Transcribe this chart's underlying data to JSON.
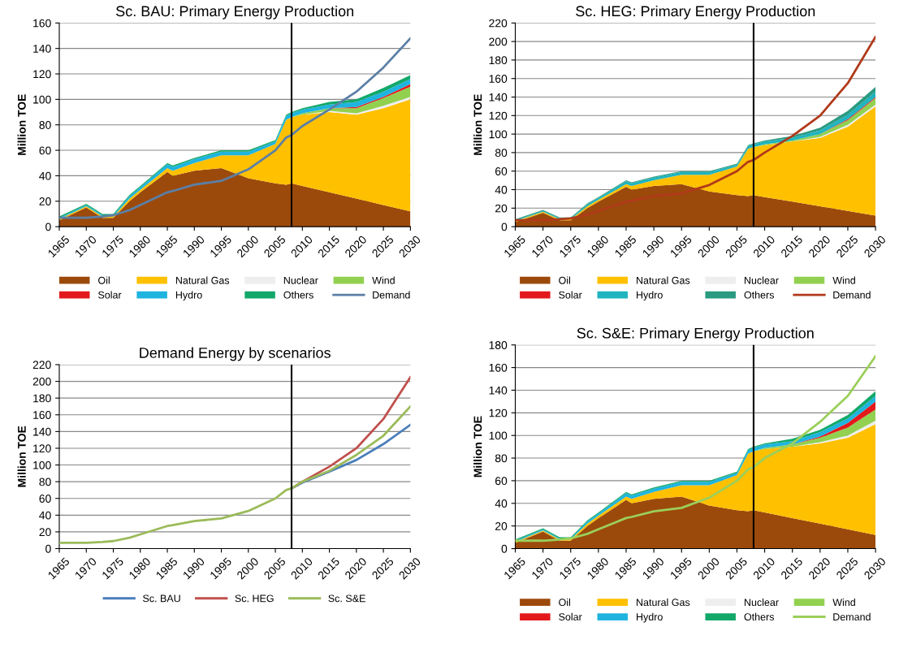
{
  "chart_data": [
    {
      "type": "area",
      "stacked": true,
      "title": "Sc. BAU: Primary Energy Production",
      "ylabel": "Million TOE",
      "x": [
        1965,
        1970,
        1973,
        1975,
        1978,
        1980,
        1985,
        1986,
        1990,
        1995,
        2000,
        2005,
        2007,
        2008,
        2010,
        2015,
        2020,
        2025,
        2030
      ],
      "xlim": [
        1965,
        2030
      ],
      "xticks": [
        1965,
        1970,
        1975,
        1980,
        1985,
        1990,
        1995,
        2000,
        2005,
        2010,
        2015,
        2020,
        2025,
        2030
      ],
      "ylim": [
        0,
        160
      ],
      "yticks": [
        0,
        20,
        40,
        60,
        80,
        100,
        120,
        140,
        160
      ],
      "grid": "y",
      "legend": "bottom",
      "ref_lines": [
        {
          "axis": "x",
          "value": 2008,
          "color": "#000000"
        }
      ],
      "series": [
        {
          "name": "Oil",
          "color": "#9c4a0c",
          "values": [
            5,
            15,
            7,
            7,
            20,
            27,
            43,
            40,
            44,
            46,
            38,
            34,
            33,
            34,
            32,
            27,
            22,
            17,
            12
          ]
        },
        {
          "name": "Natural Gas",
          "color": "#ffc000",
          "values": [
            1,
            1,
            1,
            1,
            2,
            2,
            3,
            4,
            6,
            10,
            18,
            31,
            51,
            52,
            56,
            63,
            66,
            76,
            88
          ]
        },
        {
          "name": "Nuclear",
          "color": "#eeeeee",
          "values": [
            0,
            0,
            0,
            0,
            0,
            0,
            0,
            0,
            0,
            0,
            0,
            0,
            0,
            0,
            0,
            1,
            1,
            2,
            2
          ]
        },
        {
          "name": "Wind",
          "color": "#92d050",
          "values": [
            0,
            0,
            0,
            0,
            0,
            0,
            0,
            0,
            0,
            0,
            0,
            0,
            0,
            0,
            1,
            2,
            4,
            6,
            8
          ]
        },
        {
          "name": "Solar",
          "color": "#e31a1c",
          "values": [
            0,
            0,
            0,
            0,
            0,
            0,
            0,
            0,
            0,
            0,
            0,
            0,
            0,
            0,
            0,
            0,
            1,
            1,
            2
          ]
        },
        {
          "name": "Hydro",
          "color": "#1fb4e0",
          "values": [
            1,
            1,
            1,
            1,
            2,
            2,
            3,
            3,
            3,
            3,
            3,
            2,
            3,
            3,
            3,
            3,
            4,
            4,
            4
          ]
        },
        {
          "name": "Others",
          "color": "#12a86a",
          "values": [
            1,
            1,
            1,
            1,
            1,
            1,
            1,
            1,
            1,
            1,
            1,
            1,
            1,
            1,
            1,
            2,
            2,
            3,
            3
          ]
        },
        {
          "name": "Demand",
          "type": "line",
          "color": "#5b7fa6",
          "values": [
            7,
            7,
            8,
            9,
            13,
            17,
            27,
            28,
            33,
            36,
            45,
            60,
            70,
            72,
            79,
            92,
            106,
            125,
            148
          ]
        }
      ]
    },
    {
      "type": "area",
      "stacked": true,
      "title": "Sc. HEG: Primary Energy Production",
      "ylabel": "Million TOE",
      "x": [
        1965,
        1970,
        1973,
        1975,
        1978,
        1980,
        1985,
        1986,
        1990,
        1995,
        2000,
        2005,
        2007,
        2008,
        2010,
        2015,
        2020,
        2025,
        2030
      ],
      "xlim": [
        1965,
        2030
      ],
      "xticks": [
        1965,
        1970,
        1975,
        1980,
        1985,
        1990,
        1995,
        2000,
        2005,
        2010,
        2015,
        2020,
        2025,
        2030
      ],
      "ylim": [
        0,
        220
      ],
      "yticks": [
        0,
        20,
        40,
        60,
        80,
        100,
        120,
        140,
        160,
        180,
        200,
        220
      ],
      "grid": "y",
      "legend": "bottom",
      "ref_lines": [
        {
          "axis": "x",
          "value": 2008,
          "color": "#000000"
        }
      ],
      "series": [
        {
          "name": "Oil",
          "color": "#9c4a0c",
          "values": [
            5,
            15,
            7,
            7,
            20,
            27,
            43,
            40,
            44,
            46,
            38,
            34,
            33,
            34,
            32,
            27,
            22,
            17,
            12
          ]
        },
        {
          "name": "Natural Gas",
          "color": "#ffc000",
          "values": [
            1,
            1,
            1,
            1,
            2,
            2,
            3,
            4,
            6,
            10,
            18,
            31,
            51,
            52,
            56,
            65,
            74,
            91,
            118
          ]
        },
        {
          "name": "Nuclear",
          "color": "#eeeeee",
          "values": [
            0,
            0,
            0,
            0,
            0,
            0,
            0,
            0,
            0,
            0,
            0,
            0,
            0,
            0,
            0,
            0,
            1,
            2,
            2
          ]
        },
        {
          "name": "Wind",
          "color": "#92d050",
          "values": [
            0,
            0,
            0,
            0,
            0,
            0,
            0,
            0,
            0,
            0,
            0,
            0,
            0,
            0,
            1,
            1,
            3,
            5,
            7
          ]
        },
        {
          "name": "Solar",
          "color": "#e31a1c",
          "values": [
            0,
            0,
            0,
            0,
            0,
            0,
            0,
            0,
            0,
            0,
            0,
            0,
            0,
            0,
            0,
            0,
            0,
            1,
            1
          ]
        },
        {
          "name": "Hydro",
          "color": "#1fb4c0",
          "values": [
            1,
            1,
            1,
            1,
            2,
            2,
            3,
            3,
            3,
            3,
            3,
            2,
            3,
            3,
            3,
            3,
            4,
            5,
            6
          ]
        },
        {
          "name": "Others",
          "color": "#2a9a80",
          "values": [
            1,
            1,
            1,
            1,
            1,
            1,
            1,
            1,
            1,
            1,
            1,
            1,
            1,
            1,
            1,
            2,
            3,
            4,
            5
          ]
        },
        {
          "name": "Demand",
          "type": "line",
          "color": "#b03a1a",
          "values": [
            7,
            7,
            8,
            9,
            13,
            17,
            27,
            28,
            33,
            36,
            45,
            60,
            70,
            72,
            80,
            98,
            120,
            155,
            205
          ]
        }
      ]
    },
    {
      "type": "line",
      "title": "Demand Energy by scenarios",
      "ylabel": "Million TOE",
      "x": [
        1965,
        1970,
        1973,
        1975,
        1978,
        1980,
        1985,
        1986,
        1990,
        1995,
        2000,
        2005,
        2007,
        2008,
        2010,
        2015,
        2020,
        2025,
        2030
      ],
      "xlim": [
        1965,
        2030
      ],
      "xticks": [
        1965,
        1970,
        1975,
        1980,
        1985,
        1990,
        1995,
        2000,
        2005,
        2010,
        2015,
        2020,
        2025,
        2030
      ],
      "ylim": [
        0,
        220
      ],
      "yticks": [
        0,
        20,
        40,
        60,
        80,
        100,
        120,
        140,
        160,
        180,
        200,
        220
      ],
      "grid": "y",
      "legend": "bottom",
      "ref_lines": [
        {
          "axis": "x",
          "value": 2008,
          "color": "#000000"
        }
      ],
      "series": [
        {
          "name": "Sc. BAU",
          "color": "#4a7ebb",
          "values": [
            null,
            null,
            null,
            null,
            null,
            null,
            null,
            null,
            null,
            null,
            null,
            null,
            null,
            72,
            79,
            92,
            106,
            125,
            148
          ]
        },
        {
          "name": "Sc. HEG",
          "color": "#c0504d",
          "values": [
            null,
            null,
            null,
            null,
            null,
            null,
            null,
            null,
            null,
            null,
            null,
            null,
            null,
            72,
            80,
            98,
            120,
            155,
            205
          ]
        },
        {
          "name": "Sc. S&E",
          "color": "#9bbb59",
          "values": [
            7,
            7,
            8,
            9,
            13,
            17,
            27,
            28,
            33,
            36,
            45,
            60,
            70,
            72,
            80,
            93,
            112,
            135,
            170
          ]
        }
      ]
    },
    {
      "type": "area",
      "stacked": true,
      "title": "Sc. S&E: Primary Energy Production",
      "ylabel": "Million TOE",
      "x": [
        1965,
        1970,
        1973,
        1975,
        1978,
        1980,
        1985,
        1986,
        1990,
        1995,
        2000,
        2005,
        2007,
        2008,
        2010,
        2015,
        2020,
        2025,
        2030
      ],
      "xlim": [
        1965,
        2030
      ],
      "xticks": [
        1965,
        1970,
        1975,
        1980,
        1985,
        1990,
        1995,
        2000,
        2005,
        2010,
        2015,
        2020,
        2025,
        2030
      ],
      "ylim": [
        0,
        180
      ],
      "yticks": [
        0,
        20,
        40,
        60,
        80,
        100,
        120,
        140,
        160,
        180
      ],
      "grid": "y",
      "legend": "bottom",
      "ref_lines": [
        {
          "axis": "x",
          "value": 2008,
          "color": "#000000"
        }
      ],
      "series": [
        {
          "name": "Oil",
          "color": "#9c4a0c",
          "values": [
            5,
            15,
            7,
            7,
            20,
            27,
            43,
            40,
            44,
            46,
            38,
            34,
            33,
            34,
            32,
            27,
            22,
            17,
            12
          ]
        },
        {
          "name": "Natural Gas",
          "color": "#ffc000",
          "values": [
            1,
            1,
            1,
            1,
            2,
            2,
            3,
            4,
            6,
            10,
            18,
            31,
            51,
            52,
            56,
            63,
            71,
            81,
            98
          ]
        },
        {
          "name": "Nuclear",
          "color": "#eeeeee",
          "values": [
            0,
            0,
            0,
            0,
            0,
            0,
            0,
            0,
            0,
            0,
            0,
            0,
            0,
            0,
            0,
            0,
            1,
            2,
            3
          ]
        },
        {
          "name": "Wind",
          "color": "#92d050",
          "values": [
            0,
            0,
            0,
            0,
            0,
            0,
            0,
            0,
            0,
            0,
            0,
            0,
            0,
            0,
            1,
            2,
            4,
            7,
            10
          ]
        },
        {
          "name": "Solar",
          "color": "#e31a1c",
          "values": [
            0,
            0,
            0,
            0,
            0,
            0,
            0,
            0,
            0,
            0,
            0,
            0,
            0,
            0,
            0,
            0,
            1,
            4,
            7
          ]
        },
        {
          "name": "Hydro",
          "color": "#1fb4e0",
          "values": [
            1,
            1,
            1,
            1,
            2,
            2,
            3,
            3,
            3,
            3,
            3,
            2,
            3,
            3,
            3,
            3,
            4,
            4,
            5
          ]
        },
        {
          "name": "Others",
          "color": "#12a86a",
          "values": [
            1,
            1,
            1,
            1,
            1,
            1,
            1,
            1,
            1,
            1,
            1,
            1,
            1,
            1,
            1,
            2,
            2,
            3,
            4
          ]
        },
        {
          "name": "Demand",
          "type": "line",
          "color": "#9bcf5a",
          "values": [
            7,
            7,
            8,
            9,
            13,
            17,
            27,
            28,
            33,
            36,
            45,
            60,
            70,
            72,
            80,
            93,
            112,
            135,
            170
          ]
        }
      ]
    }
  ]
}
